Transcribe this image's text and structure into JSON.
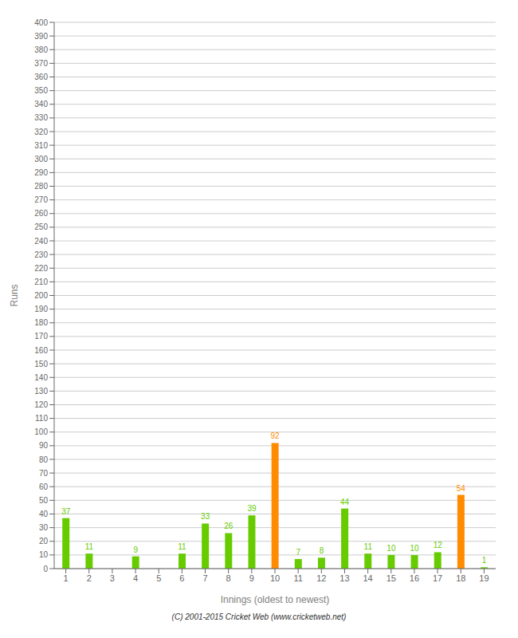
{
  "chart_data": {
    "type": "bar",
    "xlabel": "Innings (oldest to newest)",
    "ylabel": "Runs",
    "categories": [
      "1",
      "2",
      "3",
      "4",
      "5",
      "6",
      "7",
      "8",
      "9",
      "10",
      "11",
      "12",
      "13",
      "14",
      "15",
      "16",
      "17",
      "18",
      "19"
    ],
    "values": [
      37,
      11,
      0,
      9,
      0,
      11,
      33,
      26,
      39,
      92,
      7,
      8,
      44,
      11,
      10,
      10,
      12,
      54,
      1
    ],
    "colors": [
      "#66cc00",
      "#66cc00",
      "#66cc00",
      "#66cc00",
      "#66cc00",
      "#66cc00",
      "#66cc00",
      "#66cc00",
      "#66cc00",
      "#ff8c00",
      "#66cc00",
      "#66cc00",
      "#66cc00",
      "#66cc00",
      "#66cc00",
      "#66cc00",
      "#66cc00",
      "#ff8c00",
      "#66cc00"
    ],
    "ylim": [
      0,
      400
    ],
    "yticks": [
      0,
      10,
      20,
      30,
      40,
      50,
      60,
      70,
      80,
      90,
      100,
      110,
      120,
      130,
      140,
      150,
      160,
      170,
      180,
      190,
      200,
      210,
      220,
      230,
      240,
      250,
      260,
      270,
      280,
      290,
      300,
      310,
      320,
      330,
      340,
      350,
      360,
      370,
      380,
      390,
      400
    ],
    "grid": true,
    "data_labels": true,
    "annotations": [
      "(C) 2001-2015 Cricket Web (www.cricketweb.net)"
    ]
  }
}
